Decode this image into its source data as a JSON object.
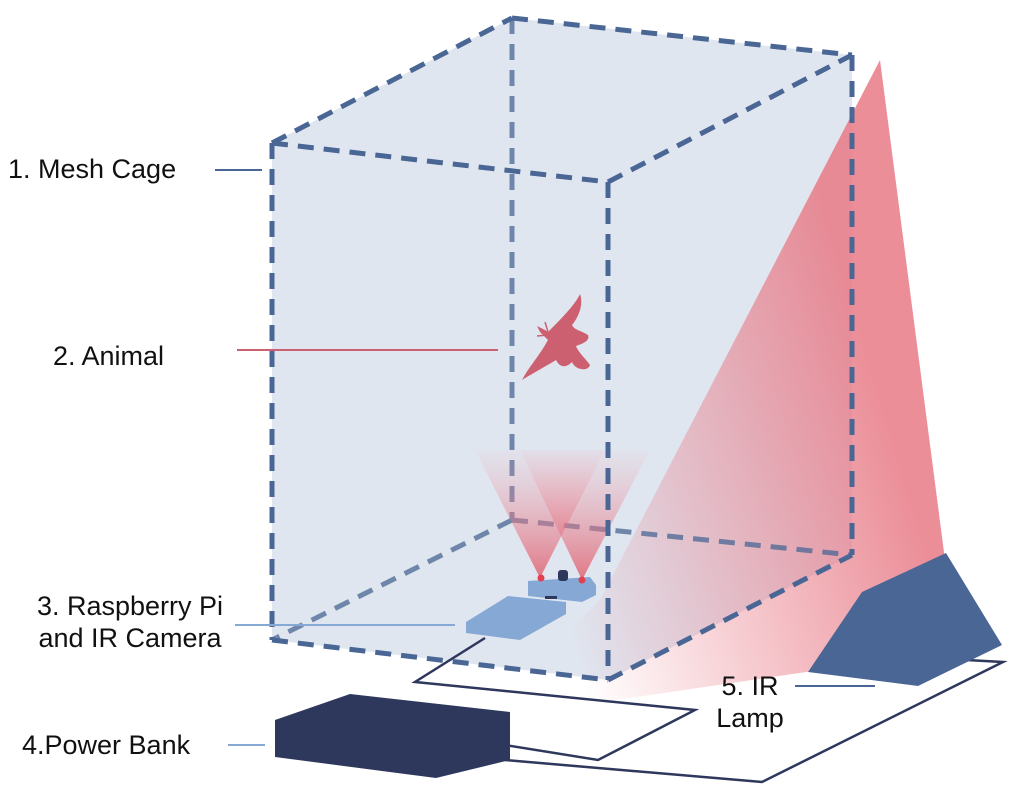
{
  "labels": {
    "mesh_cage": "1. Mesh Cage",
    "animal": "2. Animal",
    "raspberry_pi_line1": "3. Raspberry Pi",
    "raspberry_pi_line2": "and IR Camera",
    "power_bank": "4.Power Bank",
    "ir_lamp_line1": "5. IR",
    "ir_lamp_line2": "Lamp"
  },
  "colors": {
    "cage_edge": "#4a6694",
    "cage_fill": "#dde3ee",
    "animal": "#cc6070",
    "ir_light": "#e87a86",
    "raspberry_pi": "#86a8d4",
    "power_bank": "#2e375c",
    "ir_lamp": "#4a6694",
    "cable": "#2e375c"
  }
}
